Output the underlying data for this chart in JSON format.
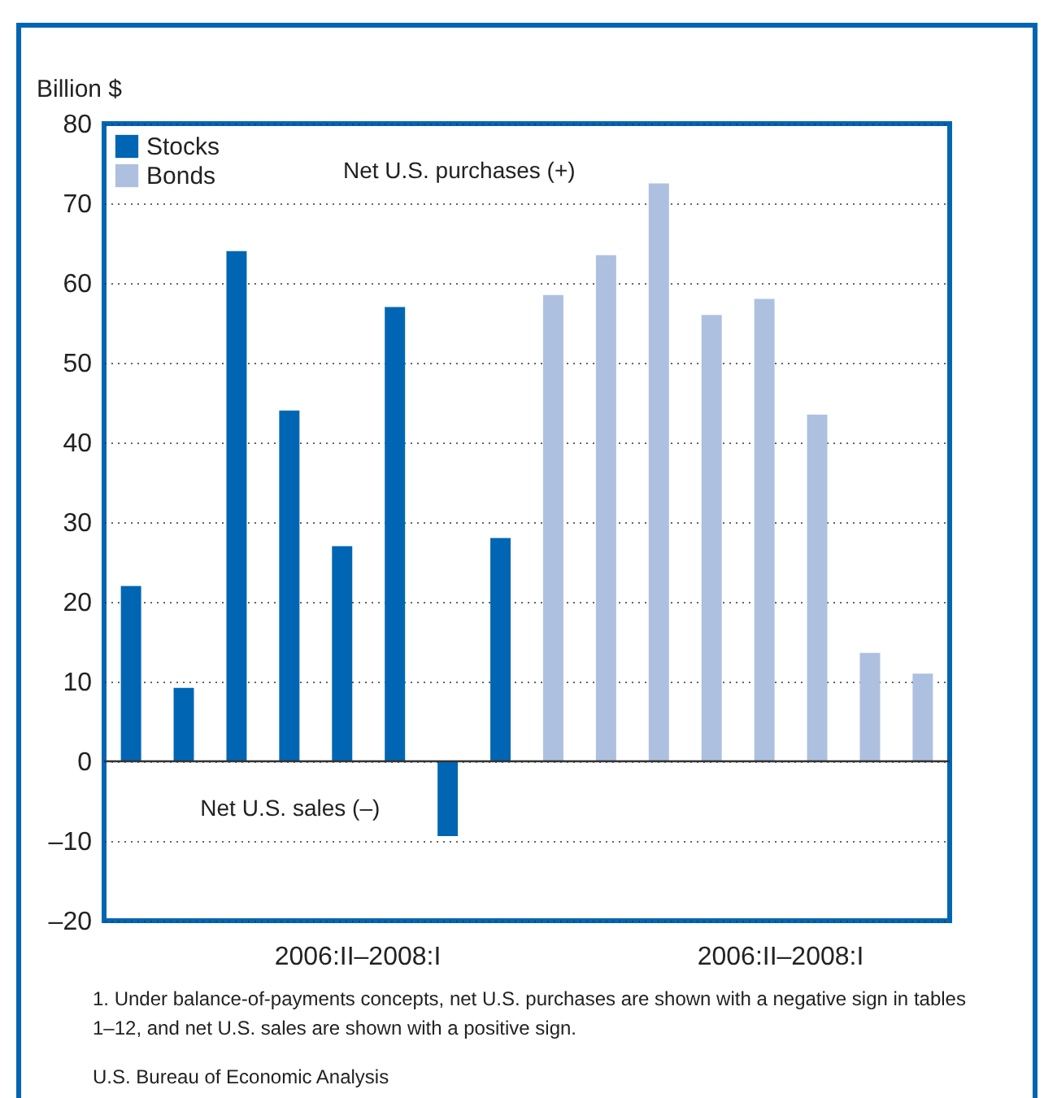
{
  "chart_data": {
    "type": "bar",
    "ylabel": "Billion $",
    "categories": [
      null,
      null,
      null,
      null,
      null,
      null,
      null,
      null,
      null,
      null,
      null,
      null,
      null,
      null,
      null,
      null
    ],
    "series": [
      {
        "name": "Stocks",
        "color": "#0066b3",
        "values": [
          22,
          9.2,
          64,
          44,
          27,
          57,
          -9.4,
          28,
          null,
          null,
          null,
          null,
          null,
          null,
          null,
          null
        ]
      },
      {
        "name": "Bonds",
        "color": "#aec0e0",
        "values": [
          null,
          null,
          null,
          null,
          null,
          null,
          null,
          null,
          58.5,
          63.5,
          72.5,
          56,
          58,
          43.5,
          13.6,
          11
        ]
      }
    ],
    "ylim": [
      -20,
      80
    ],
    "yticks": [
      {
        "value": -20,
        "label": "–20"
      },
      {
        "value": -10,
        "label": "–10"
      },
      0,
      10,
      20,
      30,
      40,
      50,
      60,
      70,
      80
    ],
    "grid": "y",
    "legend": "top left",
    "tick_labels": "y",
    "annotations": [
      "Net U.S. purchases (+)",
      "Net U.S. sales (–)",
      "2006:II–2008:I",
      "2006:II–2008:I",
      "1. Under balance-of-payments concepts, net U.S. purchases are shown with a negative sign in tables 1–12, and net U.S. sales are shown with a positive sign.",
      "U.S. Bureau of Economic Analysis"
    ]
  }
}
